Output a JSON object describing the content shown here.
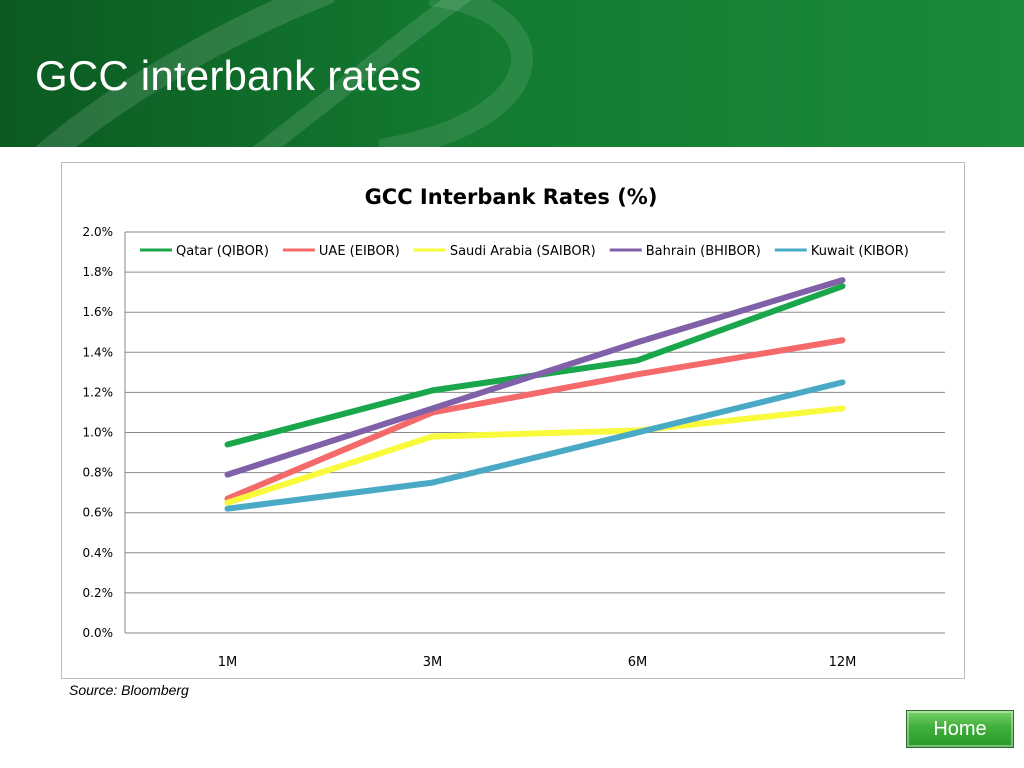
{
  "slide": {
    "title": "GCC interbank rates",
    "source": "Source: Bloomberg",
    "home_label": "Home"
  },
  "chart_data": {
    "type": "line",
    "title": "GCC Interbank Rates (%)",
    "categories": [
      "1M",
      "3M",
      "6M",
      "12M"
    ],
    "ylim": [
      0,
      2.0
    ],
    "yticks": [
      "0.0%",
      "0.2%",
      "0.4%",
      "0.6%",
      "0.8%",
      "1.0%",
      "1.2%",
      "1.4%",
      "1.6%",
      "1.8%",
      "2.0%"
    ],
    "grid": true,
    "legend_position": "top",
    "series": [
      {
        "name": "Qatar (QIBOR)",
        "color": "#1aa64b",
        "values": [
          0.94,
          1.21,
          1.36,
          1.73
        ]
      },
      {
        "name": "UAE (EIBOR)",
        "color": "#f46a6a",
        "values": [
          0.67,
          1.1,
          1.29,
          1.46
        ]
      },
      {
        "name": "Saudi Arabia (SAIBOR)",
        "color": "#fafa3c",
        "values": [
          0.65,
          0.98,
          1.01,
          1.12
        ]
      },
      {
        "name": "Bahrain (BHIBOR)",
        "color": "#8060a8",
        "values": [
          0.79,
          1.12,
          1.45,
          1.76
        ]
      },
      {
        "name": "Kuwait (KIBOR)",
        "color": "#4aaac6",
        "values": [
          0.62,
          0.75,
          1.0,
          1.25
        ]
      }
    ]
  }
}
